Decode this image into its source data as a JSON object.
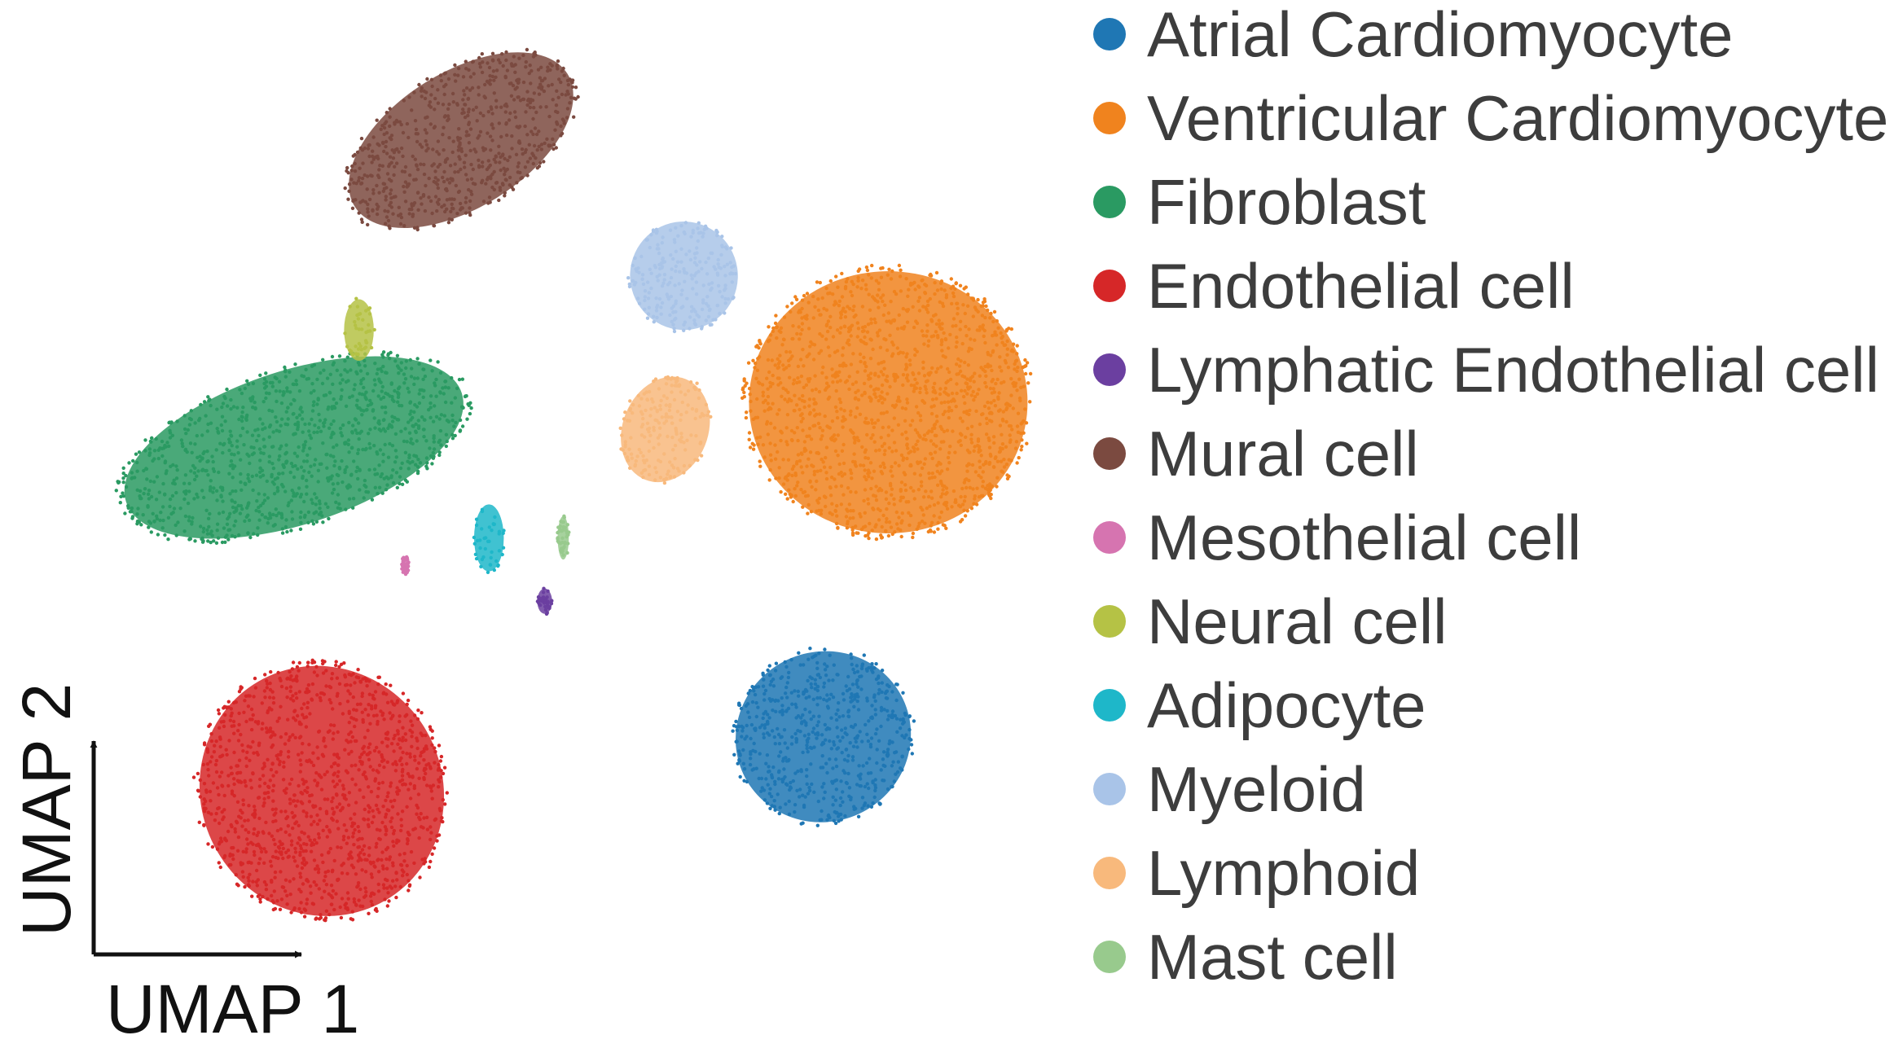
{
  "chart_data": {
    "type": "scatter",
    "xlabel": "UMAP 1",
    "ylabel": "UMAP 2",
    "grid": false,
    "legend_position": "right",
    "series": [
      {
        "name": "Atrial Cardiomyocyte",
        "color": "#1f77b4",
        "clusters": [
          {
            "x": 0.79,
            "y": 0.23,
            "rx": 0.095,
            "ry": 0.094,
            "rot": -25
          }
        ]
      },
      {
        "name": "Ventricular Cardiomyocyte",
        "color": "#f0831e",
        "clusters": [
          {
            "x": 0.86,
            "y": 0.6,
            "rx": 0.15,
            "ry": 0.145,
            "rot": 0
          }
        ]
      },
      {
        "name": "Fibroblast",
        "color": "#2a9a62",
        "clusters": [
          {
            "x": 0.22,
            "y": 0.55,
            "rx": 0.19,
            "ry": 0.085,
            "rot": -18
          }
        ]
      },
      {
        "name": "Endothelial cell",
        "color": "#d62728",
        "clusters": [
          {
            "x": 0.25,
            "y": 0.17,
            "rx": 0.13,
            "ry": 0.14,
            "rot": -30
          }
        ]
      },
      {
        "name": "Lymphatic Endothelial cell",
        "color": "#6b3fa0",
        "clusters": [
          {
            "x": 0.49,
            "y": 0.38,
            "rx": 0.008,
            "ry": 0.014,
            "rot": 0
          }
        ]
      },
      {
        "name": "Mural cell",
        "color": "#7b4a40",
        "clusters": [
          {
            "x": 0.4,
            "y": 0.89,
            "rx": 0.135,
            "ry": 0.075,
            "rot": -32
          }
        ]
      },
      {
        "name": "Mesothelial cell",
        "color": "#d674b0",
        "clusters": [
          {
            "x": 0.34,
            "y": 0.42,
            "rx": 0.004,
            "ry": 0.01,
            "rot": 0
          }
        ]
      },
      {
        "name": "Neural cell",
        "color": "#b5c245",
        "clusters": [
          {
            "x": 0.29,
            "y": 0.68,
            "rx": 0.016,
            "ry": 0.034,
            "rot": 0
          }
        ]
      },
      {
        "name": "Adipocyte",
        "color": "#1eb7c9",
        "clusters": [
          {
            "x": 0.43,
            "y": 0.45,
            "rx": 0.016,
            "ry": 0.037,
            "rot": 0
          }
        ]
      },
      {
        "name": "Myeloid",
        "color": "#a9c4e8",
        "clusters": [
          {
            "x": 0.64,
            "y": 0.74,
            "rx": 0.058,
            "ry": 0.06,
            "rot": -20
          }
        ]
      },
      {
        "name": "Lymphoid",
        "color": "#f8b97c",
        "clusters": [
          {
            "x": 0.62,
            "y": 0.57,
            "rx": 0.046,
            "ry": 0.06,
            "rot": 22
          }
        ]
      },
      {
        "name": "Mast cell",
        "color": "#98ca8d",
        "clusters": [
          {
            "x": 0.51,
            "y": 0.45,
            "rx": 0.006,
            "ry": 0.024,
            "rot": 0
          }
        ]
      }
    ]
  }
}
